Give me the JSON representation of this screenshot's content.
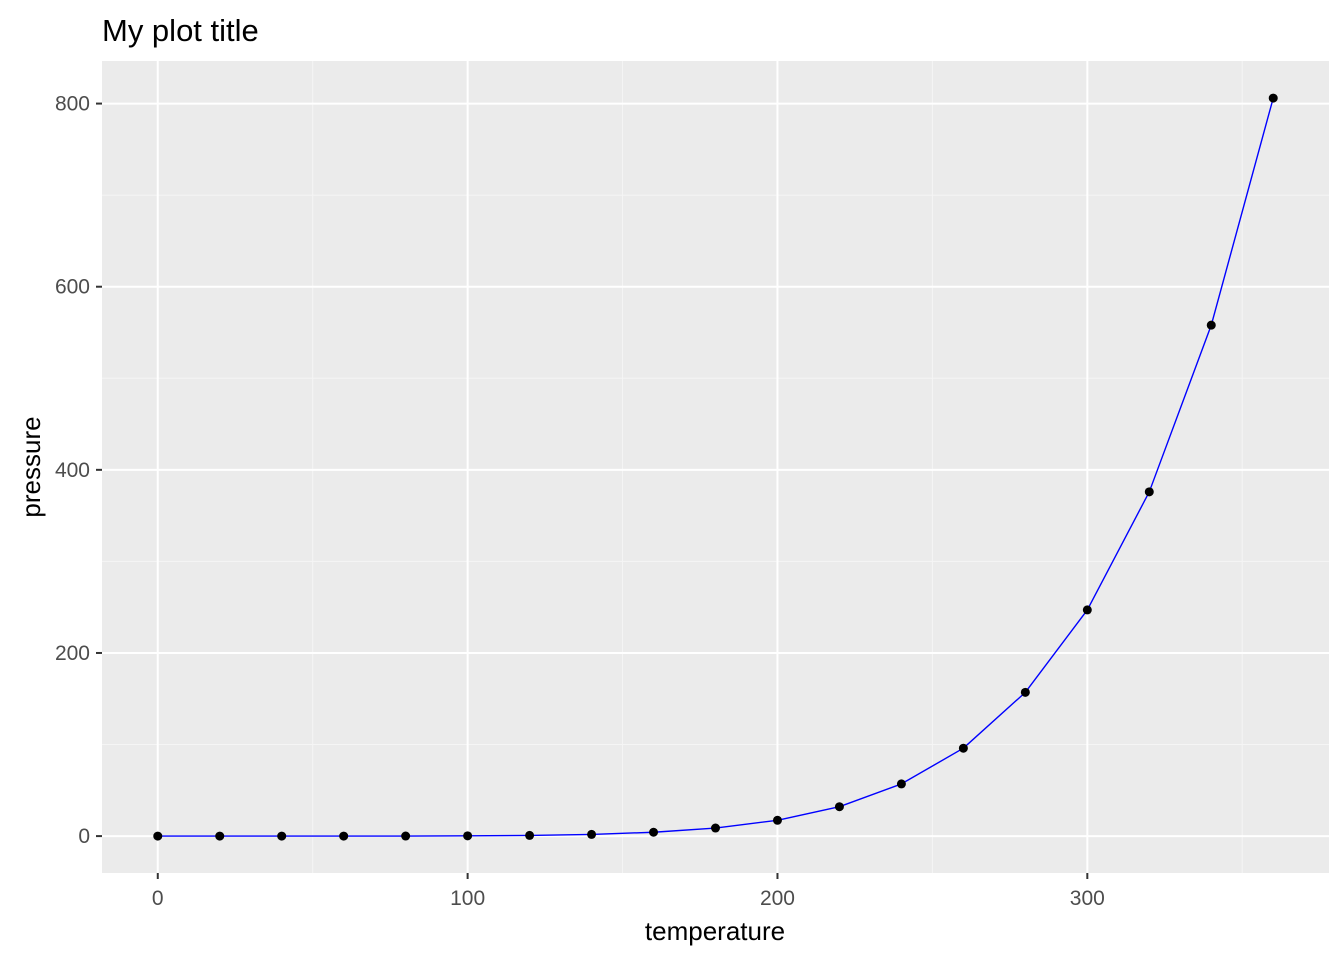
{
  "chart_data": {
    "type": "line",
    "title": "My plot title",
    "xlabel": "temperature",
    "ylabel": "pressure",
    "xlim": [
      -18,
      378
    ],
    "ylim": [
      -40.3,
      846.5
    ],
    "x_ticks": [
      0,
      100,
      200,
      300
    ],
    "y_ticks": [
      0,
      200,
      400,
      600,
      800
    ],
    "grid": true,
    "legend": "none",
    "colors": {
      "panel_background": "#ebebeb",
      "grid_major": "#ffffff",
      "grid_minor": "#f5f5f5",
      "line": "#0000ff",
      "points": "#000000",
      "tick_text": "#4d4d4d",
      "tick_mark": "#333333"
    },
    "series": [
      {
        "x": [
          0,
          20,
          40,
          60,
          80,
          100,
          120,
          140,
          160,
          180,
          200,
          220,
          240,
          260,
          280,
          300,
          320,
          340,
          360
        ],
        "y": [
          0.0002,
          0.0012,
          0.006,
          0.03,
          0.09,
          0.27,
          0.75,
          1.85,
          4.2,
          8.8,
          17.3,
          32.1,
          57.0,
          96.0,
          157.0,
          247.0,
          376.0,
          558.0,
          806.0
        ]
      }
    ]
  }
}
